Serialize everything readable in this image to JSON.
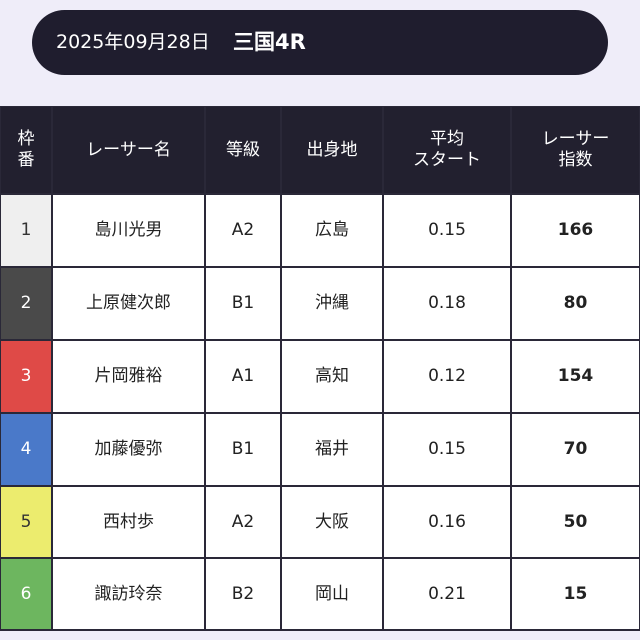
{
  "header": {
    "date": "2025年09月28日",
    "race": "三国4R"
  },
  "table": {
    "columns": [
      [
        "枠",
        "番"
      ],
      [
        "レーサー名"
      ],
      [
        "等級"
      ],
      [
        "出身地"
      ],
      [
        "平均",
        "スタート"
      ],
      [
        "レーサー",
        "指数"
      ]
    ],
    "rows": [
      [
        "1",
        "島川光男",
        "A2",
        "広島",
        "0.15",
        "166"
      ],
      [
        "2",
        "上原健次郎",
        "B1",
        "沖縄",
        "0.18",
        "80"
      ],
      [
        "3",
        "片岡雅裕",
        "A1",
        "高知",
        "0.12",
        "154"
      ],
      [
        "4",
        "加藤優弥",
        "B1",
        "福井",
        "0.15",
        "70"
      ],
      [
        "5",
        "西村歩",
        "A2",
        "大阪",
        "0.16",
        "50"
      ],
      [
        "6",
        "諏訪玲奈",
        "B2",
        "岡山",
        "0.21",
        "15"
      ]
    ]
  }
}
